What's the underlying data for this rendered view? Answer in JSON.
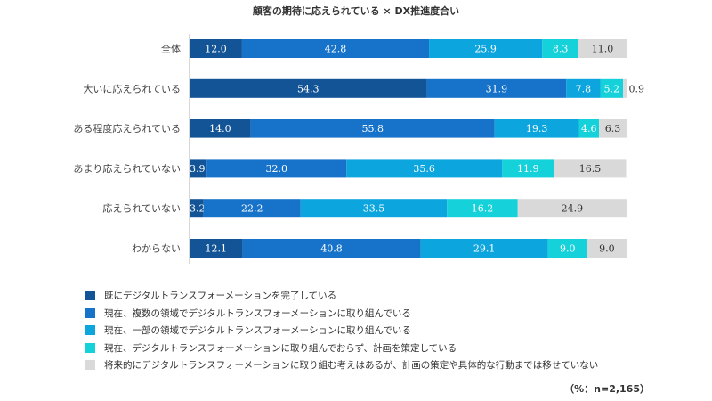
{
  "chart_data": {
    "type": "bar",
    "orientation": "horizontal",
    "stacked": true,
    "title": "顧客の期待に応えられている × DX推進度合い",
    "categories": [
      "全体",
      "大いに応えられている",
      "ある程度応えられている",
      "あまり応えられていない",
      "応えられていない",
      "わからない"
    ],
    "series": [
      {
        "name": "既にデジタルトランスフォーメーションを完了している",
        "color": "#135496",
        "values": [
          12.0,
          54.3,
          14.0,
          3.9,
          3.2,
          12.1
        ]
      },
      {
        "name": "現在、複数の領域でデジタルトランスフォーメーションに取り組んでいる",
        "color": "#1772c9",
        "values": [
          42.8,
          31.9,
          55.8,
          32.0,
          22.2,
          40.8
        ]
      },
      {
        "name": "現在、一部の領域でデジタルトランスフォーメーションに取り組んでいる",
        "color": "#0da5de",
        "values": [
          25.9,
          7.8,
          19.3,
          35.6,
          33.5,
          29.1
        ]
      },
      {
        "name": "現在、デジタルトランスフォーメーションに取り組んでおらず、計画を策定している",
        "color": "#14d1da",
        "values": [
          8.3,
          5.2,
          4.6,
          11.9,
          16.2,
          9.0
        ]
      },
      {
        "name": "将来的にデジタルトランスフォーメーションに取り組む考えはあるが、計画の策定や具体的な行動までは移せていない",
        "color": "#d9d9d9",
        "values": [
          11.0,
          0.9,
          6.3,
          16.5,
          24.9,
          9.0
        ]
      }
    ],
    "xlim": [
      0,
      100
    ],
    "legend_position": "bottom-left",
    "note": "（%：n=2,165）"
  }
}
